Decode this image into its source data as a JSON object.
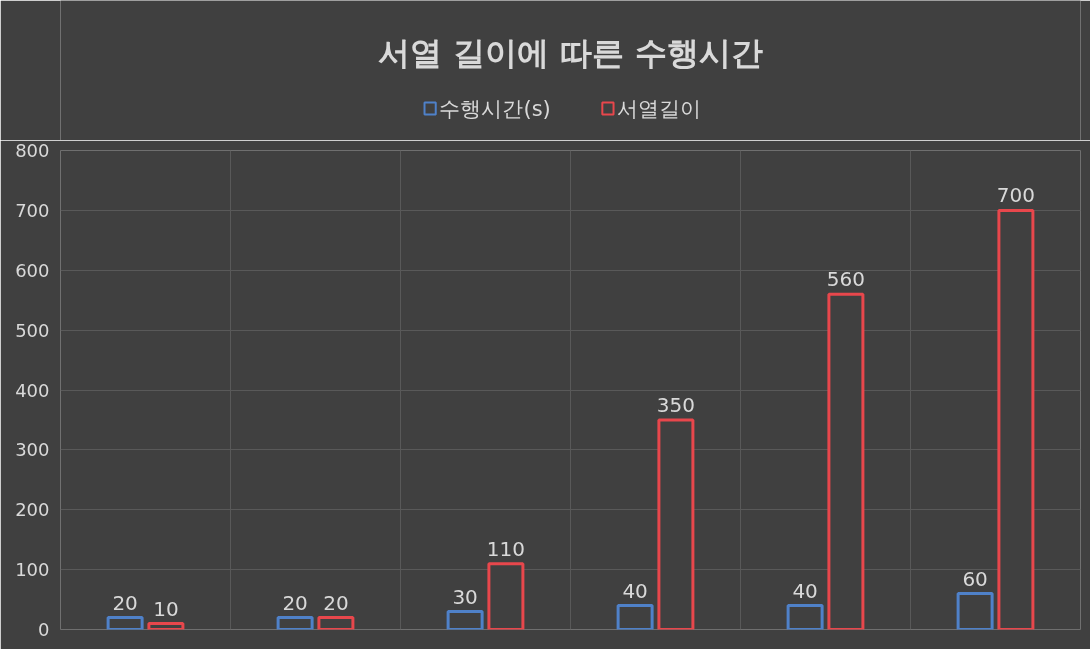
{
  "chart_data": {
    "type": "bar",
    "title": "서열 길이에 따른 수행시간",
    "categories": [
      null,
      null,
      null,
      null,
      null,
      null
    ],
    "series": [
      {
        "name": "수행시간(s)",
        "color": "#4f81c9",
        "values": [
          20,
          20,
          30,
          40,
          40,
          60
        ]
      },
      {
        "name": "서열길이",
        "color": "#e8474c",
        "values": [
          10,
          20,
          110,
          350,
          560,
          700
        ]
      }
    ],
    "ylim": [
      0,
      800
    ],
    "yticks": [
      0,
      100,
      200,
      300,
      400,
      500,
      600,
      700,
      800
    ],
    "grid": true,
    "legend": "top",
    "data_labels": true
  }
}
